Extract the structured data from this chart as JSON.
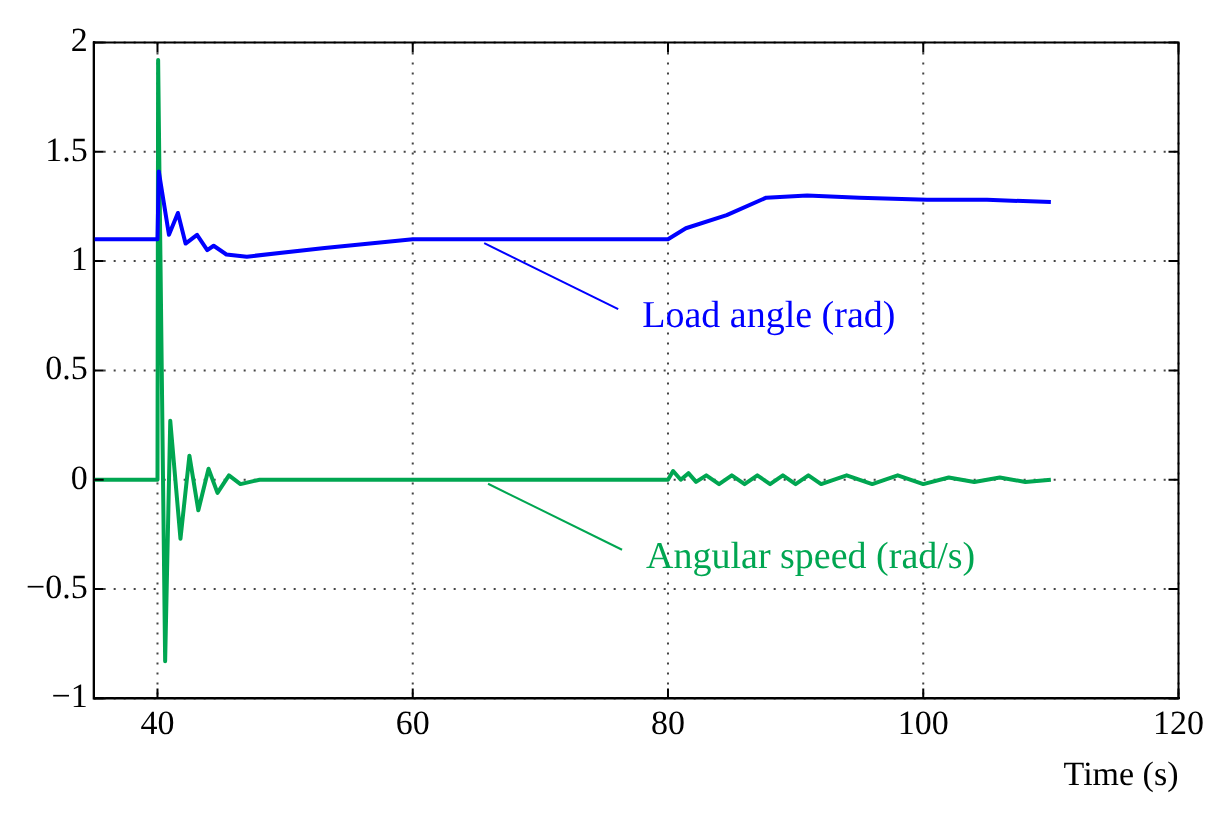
{
  "chart_data": {
    "type": "line",
    "xlabel": "Time (s)",
    "xlim": [
      35,
      120
    ],
    "xticks": [
      40,
      60,
      80,
      100,
      120
    ],
    "ylim": [
      -1,
      2
    ],
    "yticks": [
      -1,
      -0.5,
      0,
      0.5,
      1,
      1.5,
      2
    ],
    "grid": true,
    "legend": false,
    "marker": "none",
    "line_style": "solid",
    "series": [
      {
        "color": "#0000ff",
        "x": [
          35,
          40,
          40.1,
          40.9,
          41.6,
          42.2,
          43.1,
          43.9,
          44.4,
          45.4,
          47,
          53.1,
          60,
          70,
          80,
          81.4,
          84.6,
          87.7,
          90.9,
          95,
          100.3,
          105,
          110
        ],
        "values": [
          1.1,
          1.1,
          1.41,
          1.12,
          1.22,
          1.08,
          1.12,
          1.05,
          1.07,
          1.03,
          1.02,
          1.06,
          1.1,
          1.1,
          1.1,
          1.15,
          1.21,
          1.29,
          1.3,
          1.29,
          1.28,
          1.28,
          1.27
        ]
      },
      {
        "color": "#00a651",
        "x": [
          35,
          40,
          40.05,
          40.6,
          41,
          41.8,
          42.5,
          43.2,
          44,
          44.7,
          45.6,
          46.5,
          48,
          60,
          80,
          80.4,
          81,
          81.6,
          82.2,
          83,
          84,
          85,
          86,
          87,
          88,
          89,
          90,
          91,
          92,
          94,
          96,
          98,
          100,
          102,
          104,
          106,
          108,
          110
        ],
        "values": [
          0,
          0,
          1.92,
          -0.83,
          0.27,
          -0.27,
          0.11,
          -0.14,
          0.05,
          -0.06,
          0.02,
          -0.02,
          0,
          0,
          0,
          0.04,
          0,
          0.03,
          -0.01,
          0.02,
          -0.02,
          0.02,
          -0.02,
          0.02,
          -0.02,
          0.02,
          -0.02,
          0.02,
          -0.02,
          0.02,
          -0.02,
          0.02,
          -0.02,
          0.01,
          -0.01,
          0.01,
          -0.01,
          0
        ]
      }
    ],
    "annotations": [
      {
        "text": "Load angle (rad)",
        "x": 65.6,
        "y": 1.1
      },
      {
        "text": "Angular speed (rad/s)",
        "x": 65.9,
        "y": 0
      }
    ]
  }
}
